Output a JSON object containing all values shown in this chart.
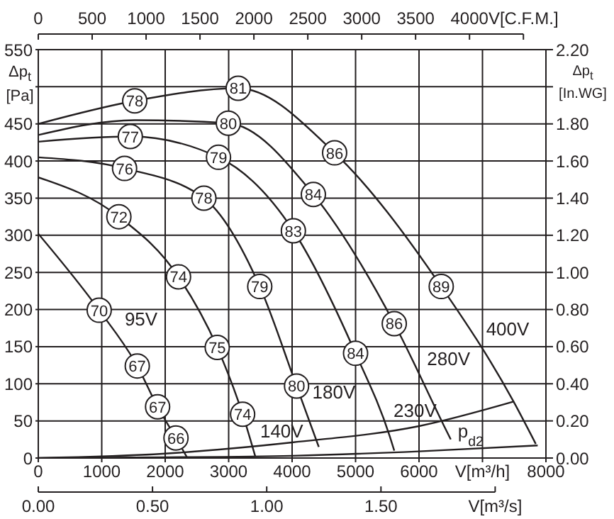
{
  "chart_data": {
    "type": "line",
    "ylabel": "Δp$_{t}$ [Pa]",
    "y2label": "Δp$_{t}$ [In.WG]",
    "xlim": [
      0,
      8000
    ],
    "xticks": [
      0,
      1000,
      2000,
      3000,
      4000,
      5000,
      6000,
      {
        "value": 7000,
        "label": "V[m³/h]"
      },
      8000
    ],
    "x2lim": [
      0,
      4709
    ],
    "x2ticks": [
      0,
      500,
      1000,
      1500,
      2000,
      2500,
      3000,
      3500,
      4000,
      {
        "value": 4500,
        "label": "V[C.F.M.]"
      }
    ],
    "ylim": [
      0,
      550
    ],
    "yticks": [
      0,
      50,
      100,
      150,
      200,
      250,
      300,
      350,
      400,
      450,
      {
        "value": 500,
        "label": null
      },
      550
    ],
    "y2lim": [
      0,
      2.2
    ],
    "y2ticks": [
      {
        "value": 0,
        "label": "0.00"
      },
      {
        "value": 0.2,
        "label": "0.20"
      },
      {
        "value": 0.4,
        "label": "0.40"
      },
      {
        "value": 0.6,
        "label": "0.60"
      },
      {
        "value": 0.8,
        "label": "0.80"
      },
      {
        "value": 1,
        "label": "1.00"
      },
      {
        "value": 1.2,
        "label": "1.20"
      },
      {
        "value": 1.4,
        "label": "1.40"
      },
      {
        "value": 1.6,
        "label": "1.60"
      },
      {
        "value": 1.8,
        "label": "1.80"
      },
      {
        "value": 2,
        "label": null
      },
      {
        "value": 2.2,
        "label": "2.20"
      }
    ],
    "grid": true,
    "series": [
      {
        "color": "#231f20",
        "x": [
          0,
          1520,
          3150,
          4670,
          6350,
          7490,
          7840
        ],
        "values": [
          450,
          481,
          498,
          411,
          231,
          76,
          19
        ]
      },
      {
        "color": "#231f20",
        "x": [
          0,
          1520,
          2995,
          4335,
          5610,
          6390,
          6500
        ],
        "values": [
          435,
          455,
          451,
          355,
          181,
          44,
          25
        ]
      },
      {
        "color": "#231f20",
        "x": [
          0,
          1450,
          2840,
          4020,
          5000,
          5540,
          5610
        ],
        "values": [
          426,
          433,
          405,
          306,
          141,
          29,
          10
        ]
      },
      {
        "color": "#231f20",
        "x": [
          0,
          1360,
          2610,
          3490,
          4070,
          4420
        ],
        "values": [
          405,
          390,
          350,
          231,
          97,
          15
        ]
      },
      {
        "color": "#231f20",
        "x": [
          0,
          1270,
          2210,
          2820,
          3220,
          3420
        ],
        "values": [
          378,
          325,
          244,
          149,
          59,
          2
        ]
      },
      {
        "color": "#231f20",
        "x": [
          0,
          960,
          1560,
          1880,
          2170,
          2350
        ],
        "values": [
          302,
          199,
          124,
          69,
          27,
          0
        ]
      },
      {
        "color": "#231f20",
        "x": [
          0,
          2000,
          4000,
          6000,
          7490
        ],
        "values": [
          0,
          6,
          21,
          43,
          76
        ]
      },
      {
        "color": "#231f20",
        "x": [
          0,
          2000,
          4000,
          6000,
          7870
        ],
        "values": [
          0,
          1,
          3,
          9,
          17
        ]
      }
    ],
    "annotations": [
      {
        "text": "78",
        "x": 1520,
        "y": 481
      },
      {
        "text": "81",
        "x": 3150,
        "y": 498
      },
      {
        "text": "86",
        "x": 4670,
        "y": 411
      },
      {
        "text": "89",
        "x": 6350,
        "y": 231
      },
      {
        "text": "80",
        "x": 2995,
        "y": 451
      },
      {
        "text": "84",
        "x": 4335,
        "y": 355
      },
      {
        "text": "86",
        "x": 5610,
        "y": 181
      },
      {
        "text": "77",
        "x": 1450,
        "y": 433
      },
      {
        "text": "79",
        "x": 2840,
        "y": 405
      },
      {
        "text": "83",
        "x": 4020,
        "y": 306
      },
      {
        "text": "84",
        "x": 5000,
        "y": 141
      },
      {
        "text": "76",
        "x": 1360,
        "y": 390
      },
      {
        "text": "78",
        "x": 2610,
        "y": 350
      },
      {
        "text": "79",
        "x": 3490,
        "y": 231
      },
      {
        "text": "80",
        "x": 4070,
        "y": 97
      },
      {
        "text": "72",
        "x": 1270,
        "y": 325
      },
      {
        "text": "74",
        "x": 2210,
        "y": 244
      },
      {
        "text": "75",
        "x": 2820,
        "y": 149
      },
      {
        "text": "74",
        "x": 3220,
        "y": 59
      },
      {
        "text": "70",
        "x": 960,
        "y": 199
      },
      {
        "text": "67",
        "x": 1560,
        "y": 124
      },
      {
        "text": "67",
        "x": 1880,
        "y": 69
      },
      {
        "text": "66",
        "x": 2170,
        "y": 27
      },
      {
        "text": "95V",
        "x": 1250,
        "y": 163
      },
      {
        "text": "140V",
        "x": 3385,
        "y": 12
      },
      {
        "text": "180V",
        "x": 4207,
        "y": 65
      },
      {
        "text": "230V",
        "x": 5487,
        "y": 40
      },
      {
        "text": "280V",
        "x": 6014,
        "y": 110
      },
      {
        "text": "400V",
        "x": 6946,
        "y": 150
      },
      {
        "text": "p$_{d2}$",
        "x": 6500,
        "y": 12
      },
      "0.00",
      "0.50",
      "1.00",
      "1.50",
      "V[m³/s]"
    ]
  }
}
